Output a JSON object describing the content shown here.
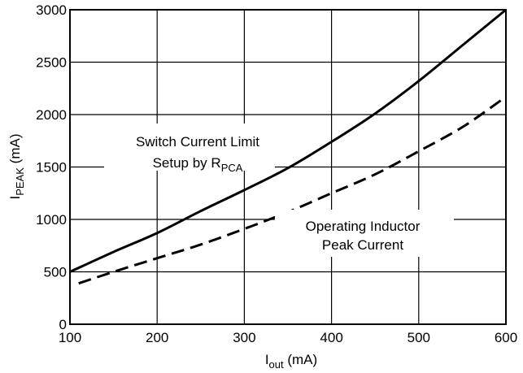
{
  "chart_data": {
    "type": "line",
    "title": "",
    "xlabel": {
      "main": "I",
      "sub": "out",
      "unit": " (mA)"
    },
    "ylabel": {
      "main": "I",
      "sub": "PEAK",
      "unit": " (mA)"
    },
    "xlim": [
      100,
      600
    ],
    "ylim": [
      0,
      3000
    ],
    "xticks": [
      100,
      200,
      300,
      400,
      500,
      600
    ],
    "yticks": [
      0,
      500,
      1000,
      1500,
      2000,
      2500,
      3000
    ],
    "grid": true,
    "series": [
      {
        "style": "solid",
        "x": [
          100,
          150,
          200,
          250,
          300,
          350,
          400,
          450,
          500,
          550,
          600
        ],
        "y": [
          500,
          690,
          870,
          1080,
          1280,
          1490,
          1740,
          2010,
          2320,
          2660,
          3000
        ]
      },
      {
        "style": "dashed",
        "x": [
          110,
          150,
          200,
          250,
          300,
          350,
          400,
          450,
          500,
          550,
          595
        ],
        "y": [
          390,
          500,
          630,
          760,
          910,
          1070,
          1250,
          1430,
          1650,
          1880,
          2140
        ]
      }
    ],
    "annotations": [
      {
        "lines": [
          {
            "text": "Switch Current Limit"
          },
          {
            "text": "Setup by R",
            "sub": "PCA"
          }
        ]
      },
      {
        "lines": [
          {
            "text": "Operating Inductor"
          },
          {
            "text": "Peak Current"
          }
        ]
      }
    ]
  }
}
